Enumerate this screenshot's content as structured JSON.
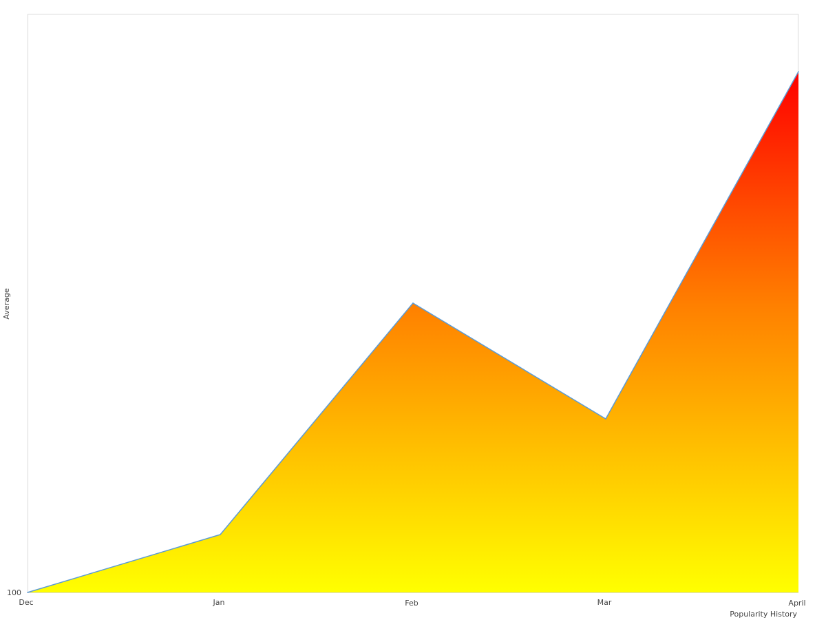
{
  "chart_data": {
    "type": "area",
    "categories": [
      "Dec",
      "Jan",
      "Feb",
      "Mar",
      "April"
    ],
    "values": [
      100,
      110,
      150,
      130,
      190
    ],
    "xlabel": "Popularity History",
    "ylabel": "Average",
    "ylim": [
      100,
      200
    ],
    "yticks": [
      "100"
    ],
    "grid": false,
    "line_color": "#5b9bd5",
    "fill_gradient": [
      "#ffff00",
      "#ff8000",
      "#ff0000"
    ],
    "frame_color": "#d9d9d9"
  }
}
